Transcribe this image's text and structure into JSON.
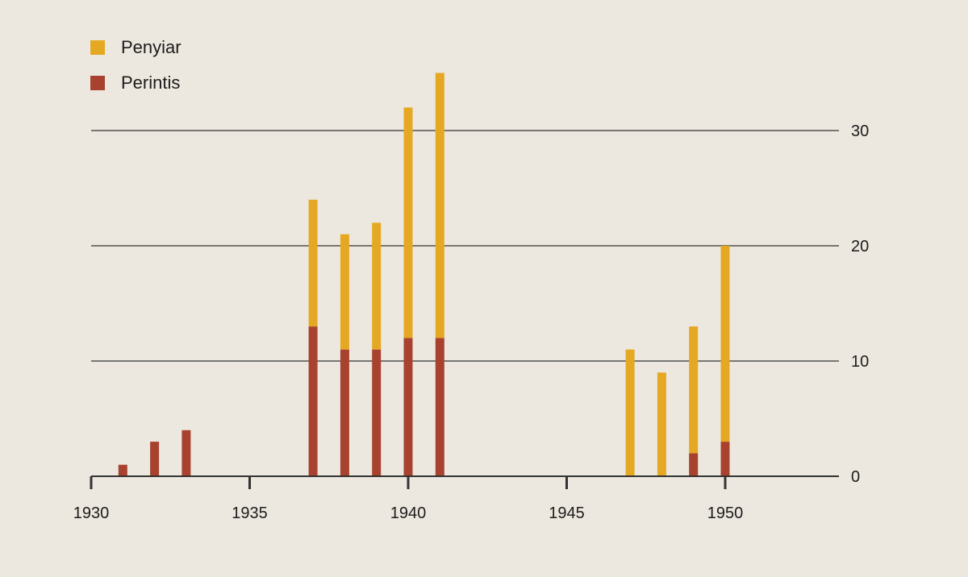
{
  "colors": {
    "background": "#ece8df",
    "penyiar": "#e5a823",
    "perintis": "#a8422f",
    "grid": "#333333",
    "text": "#1c1c1c"
  },
  "legend": {
    "items": [
      {
        "label": "Penyiar",
        "color_key": "penyiar"
      },
      {
        "label": "Perintis",
        "color_key": "perintis"
      }
    ]
  },
  "chart_data": {
    "type": "bar",
    "stacked": true,
    "x": [
      1931,
      1932,
      1933,
      1937,
      1938,
      1939,
      1940,
      1941,
      1947,
      1948,
      1949,
      1950
    ],
    "series": [
      {
        "name": "Perintis",
        "values": [
          1,
          3,
          4,
          13,
          11,
          11,
          12,
          12,
          0,
          0,
          2,
          3
        ]
      },
      {
        "name": "Penyiar",
        "values": [
          0,
          0,
          0,
          11,
          10,
          11,
          20,
          23,
          11,
          9,
          11,
          17
        ]
      }
    ],
    "xlim": [
      1930,
      1952
    ],
    "ylim": [
      0,
      30
    ],
    "x_ticks": [
      "1930",
      "1935",
      "1940",
      "1945",
      "1950"
    ],
    "y_ticks": [
      "0",
      "10",
      "20",
      "30"
    ],
    "grid": "horizontal",
    "y_axis_position": "right",
    "legend_position": "top-left"
  }
}
